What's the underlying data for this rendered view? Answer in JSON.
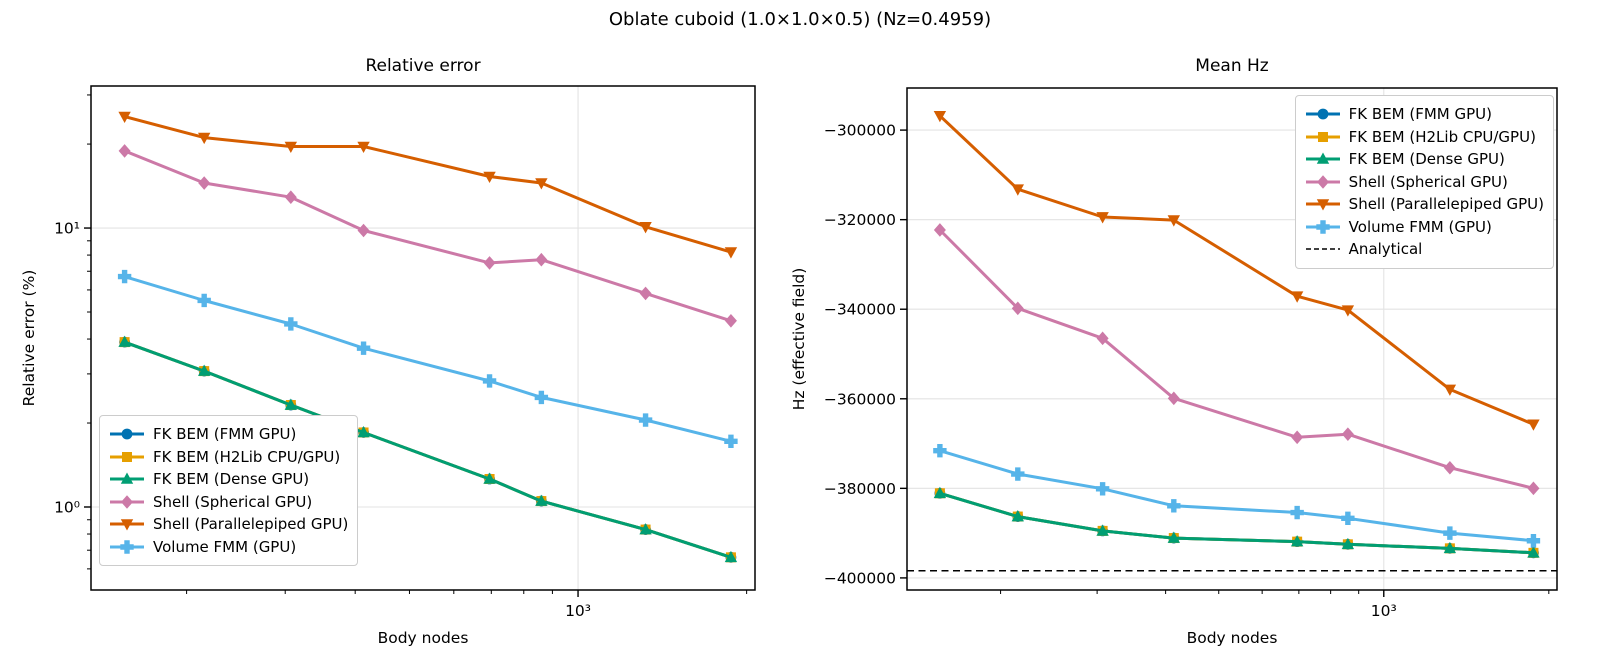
{
  "figure": {
    "suptitle": "Oblate cuboid (1.0×1.0×0.5)  (Nz=0.4959)",
    "text_color": "#000000",
    "grid_color": "#e3e3e3",
    "spine_color": "#000000",
    "background": "#ffffff"
  },
  "chart_data": [
    {
      "type": "line",
      "title": "Relative error",
      "xlabel": "Body nodes",
      "ylabel": "Relative error (%)",
      "xscale": "log",
      "yscale": "log",
      "xlim": [
        135,
        2070
      ],
      "ylim": [
        0.504,
        32.3
      ],
      "grid": true,
      "legend_position": "lower-left",
      "x": [
        155,
        215,
        307,
        414,
        695,
        860,
        1320,
        1875
      ],
      "series": [
        {
          "name": "FK BEM (FMM GPU)",
          "color": "#0072B2",
          "marker": "circle",
          "linestyle": "solid",
          "values": [
            3.9,
            3.07,
            2.32,
            1.85,
            1.26,
            1.05,
            0.83,
            0.66
          ]
        },
        {
          "name": "FK BEM (H2Lib CPU/GPU)",
          "color": "#E69F00",
          "marker": "square",
          "linestyle": "solid",
          "values": [
            3.9,
            3.07,
            2.32,
            1.85,
            1.26,
            1.05,
            0.83,
            0.66
          ]
        },
        {
          "name": "FK BEM (Dense GPU)",
          "color": "#009E73",
          "marker": "triangle-up",
          "linestyle": "solid",
          "values": [
            3.9,
            3.07,
            2.32,
            1.85,
            1.26,
            1.05,
            0.83,
            0.66
          ]
        },
        {
          "name": "Shell (Spherical GPU)",
          "color": "#CC79A7",
          "marker": "diamond",
          "linestyle": "solid",
          "values": [
            18.9,
            14.5,
            12.9,
            9.8,
            7.5,
            7.7,
            5.83,
            4.65
          ]
        },
        {
          "name": "Shell (Parallelepiped GPU)",
          "color": "#D55E00",
          "marker": "triangle-down",
          "linestyle": "solid",
          "values": [
            25.1,
            21.1,
            19.6,
            19.6,
            15.3,
            14.5,
            10.1,
            8.2
          ]
        },
        {
          "name": "Volume FMM (GPU)",
          "color": "#56B4E9",
          "marker": "plus",
          "linestyle": "solid",
          "values": [
            6.7,
            5.5,
            4.53,
            3.71,
            2.83,
            2.47,
            2.05,
            1.72
          ]
        }
      ],
      "x_ticks": {
        "major": [
          {
            "value": 1000,
            "label": "10³"
          }
        ],
        "minor": [
          200,
          300,
          400,
          500,
          600,
          700,
          800,
          900,
          2000
        ]
      },
      "y_ticks": {
        "major": [
          {
            "value": 10,
            "label": "10¹"
          },
          {
            "value": 1,
            "label": "10⁰"
          }
        ],
        "minor": [
          0.6,
          0.7,
          0.8,
          0.9,
          2,
          3,
          4,
          5,
          6,
          7,
          8,
          9,
          20,
          30
        ]
      }
    },
    {
      "type": "line",
      "title": "Mean Hz",
      "xlabel": "Body nodes",
      "ylabel": "Hz (effective field)",
      "xscale": "log",
      "yscale": "linear",
      "xlim": [
        135,
        2070
      ],
      "ylim": [
        -402700,
        -290600
      ],
      "grid": true,
      "legend_position": "upper-right",
      "x": [
        155,
        215,
        307,
        414,
        695,
        860,
        1320,
        1875
      ],
      "series": [
        {
          "name": "FK BEM (FMM GPU)",
          "color": "#0072B2",
          "marker": "circle",
          "linestyle": "solid",
          "values": [
            -381100,
            -386300,
            -389500,
            -391100,
            -391900,
            -392500,
            -393400,
            -394400
          ]
        },
        {
          "name": "FK BEM (H2Lib CPU/GPU)",
          "color": "#E69F00",
          "marker": "square",
          "linestyle": "solid",
          "values": [
            -381100,
            -386300,
            -389500,
            -391100,
            -391900,
            -392500,
            -393400,
            -394400
          ]
        },
        {
          "name": "FK BEM (Dense GPU)",
          "color": "#009E73",
          "marker": "triangle-up",
          "linestyle": "solid",
          "values": [
            -381100,
            -386300,
            -389500,
            -391100,
            -391900,
            -392500,
            -393400,
            -394400
          ]
        },
        {
          "name": "Shell (Spherical GPU)",
          "color": "#CC79A7",
          "marker": "diamond",
          "linestyle": "solid",
          "values": [
            -322300,
            -339800,
            -346500,
            -359900,
            -368600,
            -367900,
            -375400,
            -380000
          ]
        },
        {
          "name": "Shell (Parallelepiped GPU)",
          "color": "#D55E00",
          "marker": "triangle-down",
          "linestyle": "solid",
          "values": [
            -296800,
            -313200,
            -319400,
            -320100,
            -337100,
            -340200,
            -357900,
            -365700
          ]
        },
        {
          "name": "Volume FMM (GPU)",
          "color": "#56B4E9",
          "marker": "plus",
          "linestyle": "solid",
          "values": [
            -371600,
            -376800,
            -380100,
            -383900,
            -385400,
            -386700,
            -390000,
            -391700
          ]
        },
        {
          "name": "Analytical",
          "color": "#000000",
          "marker": "none",
          "linestyle": "dashed",
          "hline": -398400
        }
      ],
      "x_ticks": {
        "major": [
          {
            "value": 1000,
            "label": "10³"
          }
        ],
        "minor": [
          200,
          300,
          400,
          500,
          600,
          700,
          800,
          900,
          2000
        ]
      },
      "y_ticks": {
        "major": [
          {
            "value": -300000,
            "label": "−300000"
          },
          {
            "value": -320000,
            "label": "−320000"
          },
          {
            "value": -340000,
            "label": "−340000"
          },
          {
            "value": -360000,
            "label": "−360000"
          },
          {
            "value": -380000,
            "label": "−380000"
          },
          {
            "value": -400000,
            "label": "−400000"
          }
        ],
        "minor": []
      }
    }
  ]
}
